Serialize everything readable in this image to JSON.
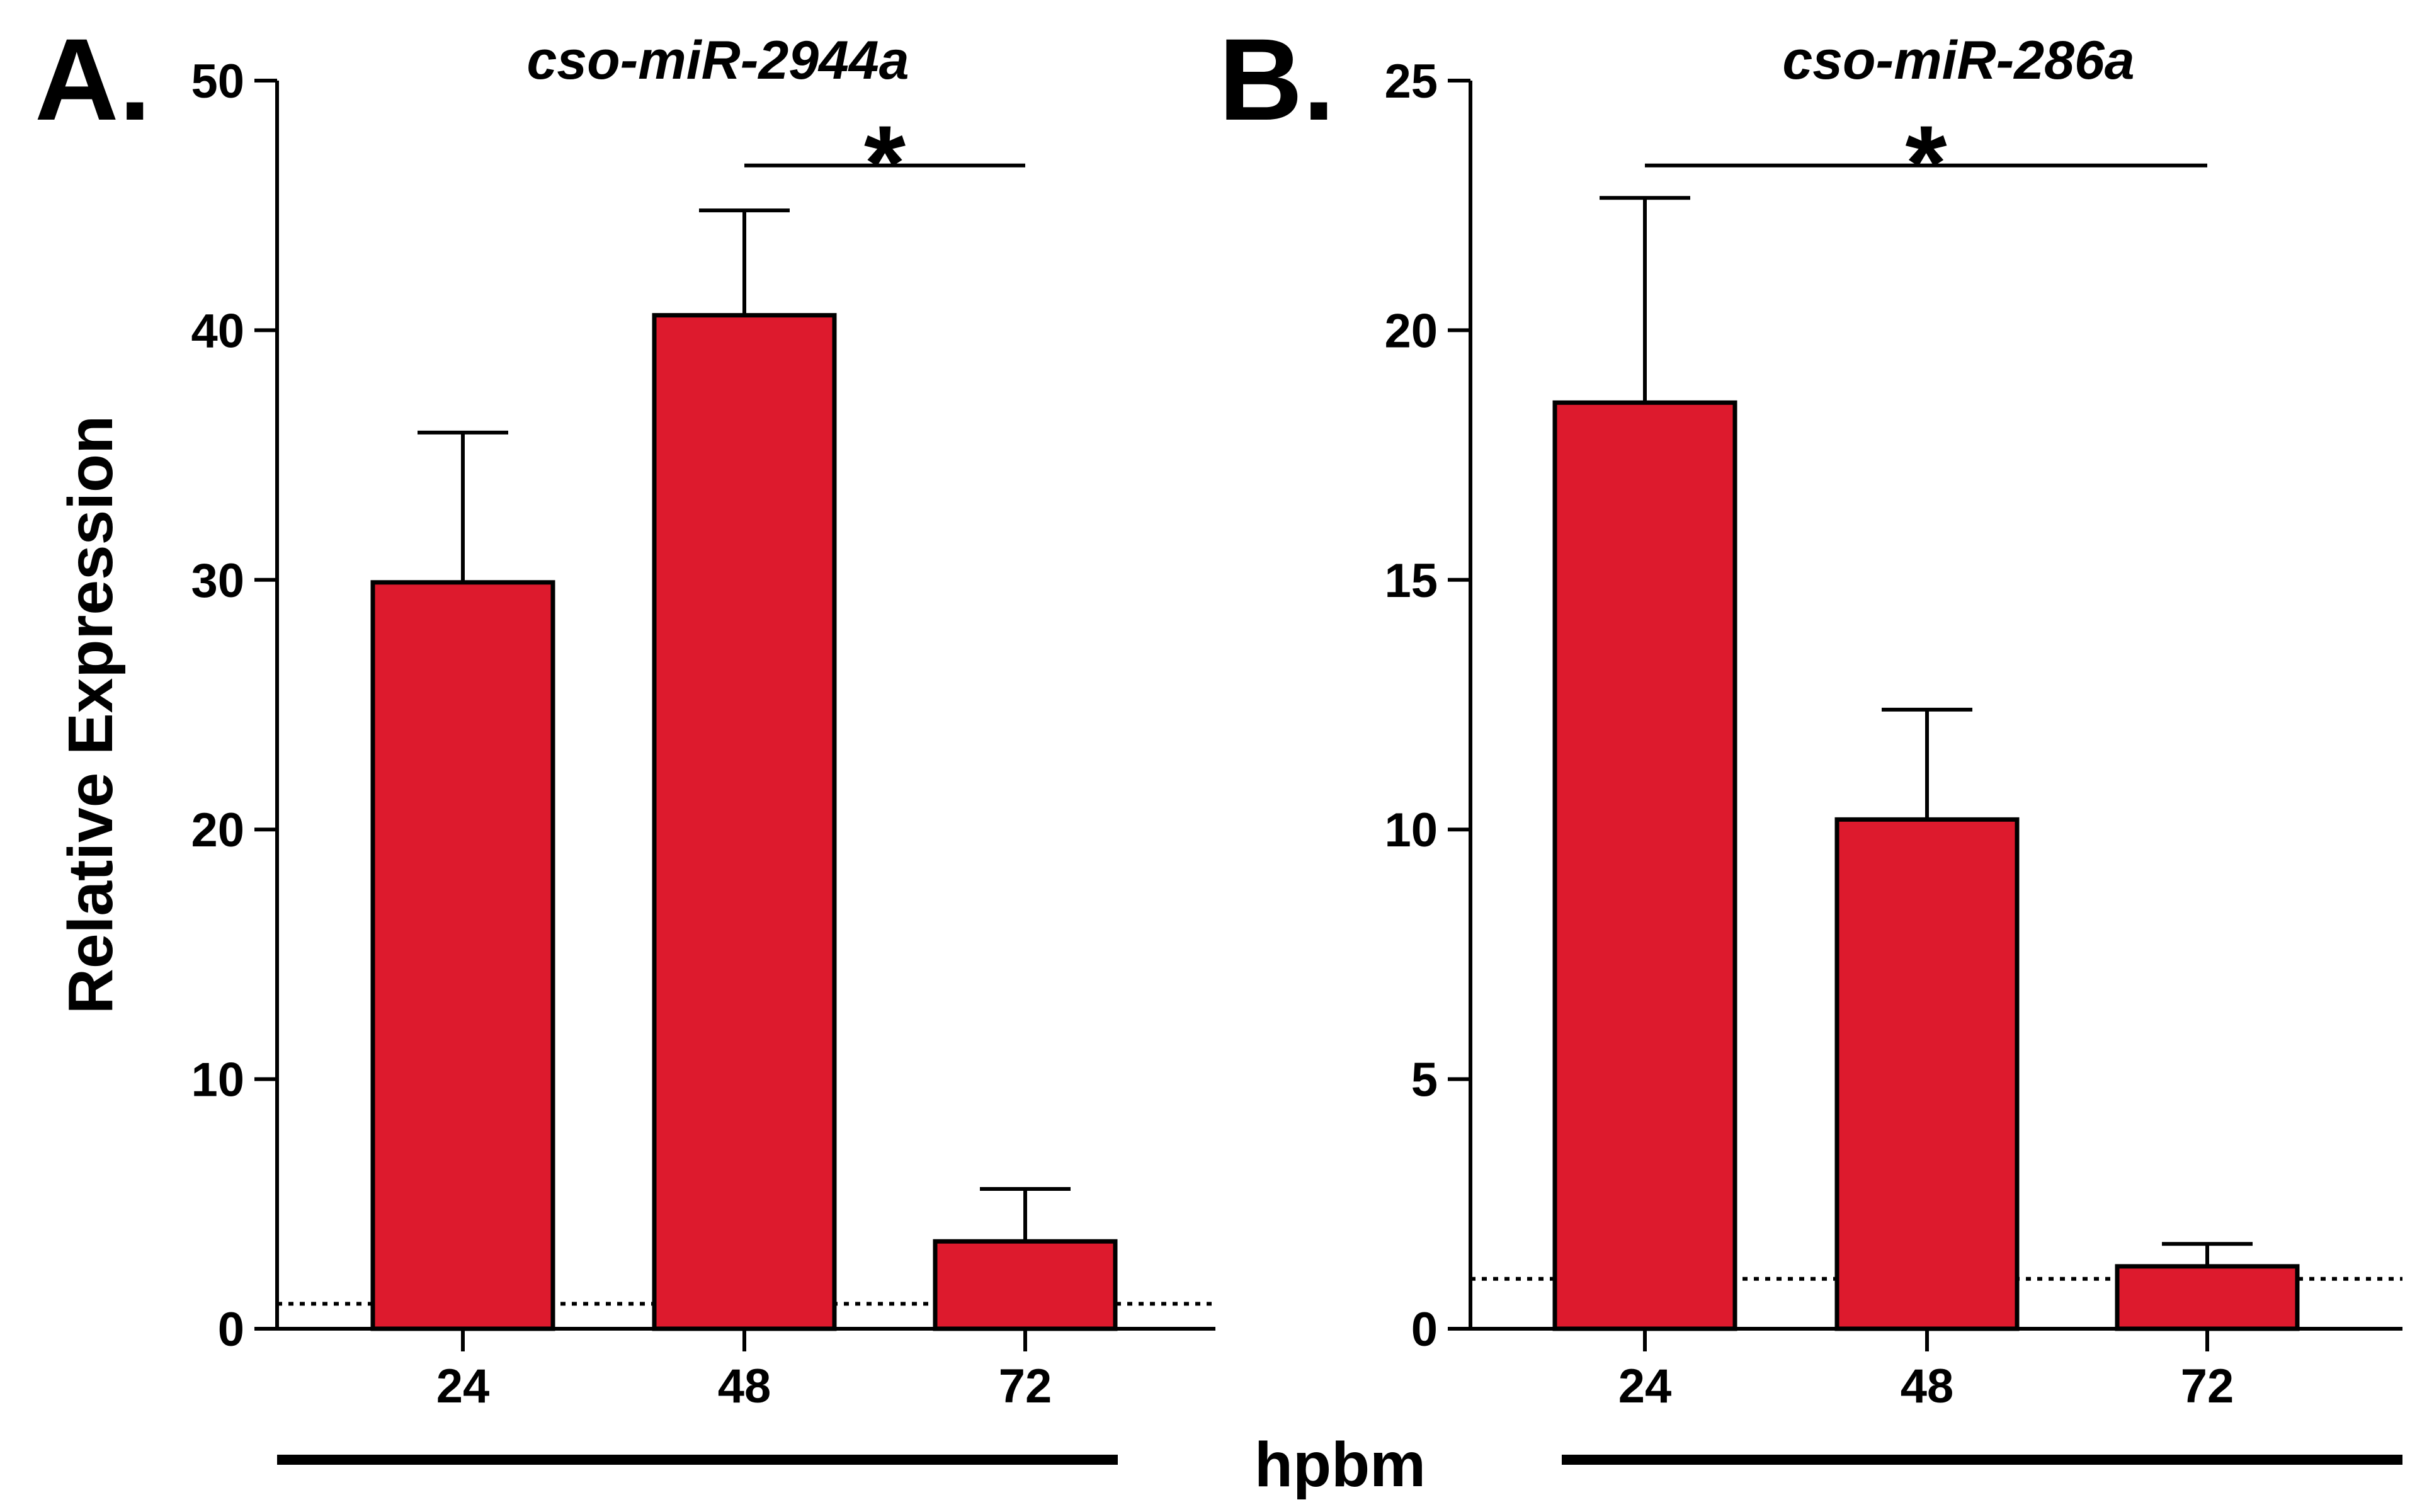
{
  "figure": {
    "ylabel": "Relative Expression",
    "xlabel": "hpbm"
  },
  "chart_data": [
    {
      "type": "bar",
      "panel": "A.",
      "title": "cso-miR-2944a",
      "categories": [
        "24",
        "48",
        "72"
      ],
      "values": [
        29.9,
        40.6,
        3.5
      ],
      "errors": [
        6.0,
        4.2,
        2.1
      ],
      "ylim": [
        0,
        50
      ],
      "yticks": [
        0,
        10,
        20,
        30,
        40,
        50
      ],
      "ytick_labels": [
        "0",
        "10",
        "20",
        "30",
        "40",
        "50"
      ],
      "baseline": 1,
      "bar_color": "#DD1A2D",
      "significance": {
        "from": "48",
        "to": "72",
        "label": "*",
        "y": 46.6
      }
    },
    {
      "type": "bar",
      "panel": "B.",
      "title": "cso-miR-286a",
      "categories": [
        "24",
        "48",
        "72"
      ],
      "values": [
        18.55,
        10.2,
        1.25
      ],
      "errors": [
        4.1,
        2.2,
        0.45
      ],
      "ylim": [
        0,
        25
      ],
      "yticks": [
        0,
        5,
        10,
        15,
        20,
        25
      ],
      "ytick_labels": [
        "0",
        "5",
        "10",
        "15",
        "20",
        "25"
      ],
      "baseline": 1,
      "bar_color": "#DD1A2D",
      "significance": {
        "from": "24",
        "to": "72",
        "label": "*",
        "y": 23.3
      }
    }
  ]
}
